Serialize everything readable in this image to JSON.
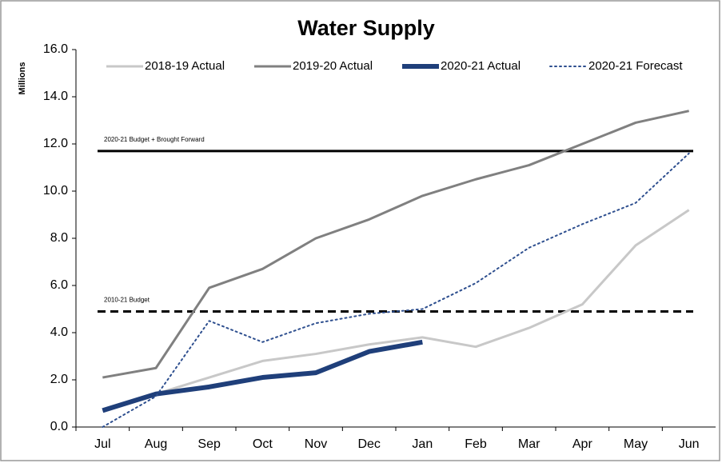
{
  "chart_data": {
    "type": "line",
    "title": "Water Supply",
    "y_label": "Millions",
    "categories": [
      "Jul",
      "Aug",
      "Sep",
      "Oct",
      "Nov",
      "Dec",
      "Jan",
      "Feb",
      "Mar",
      "Apr",
      "May",
      "Jun"
    ],
    "series": [
      {
        "name": "2018-19 Actual",
        "color": "#c8c8c8",
        "width": 3,
        "dashed": false,
        "values": [
          0.7,
          1.4,
          2.1,
          2.8,
          3.1,
          3.5,
          3.8,
          3.4,
          4.2,
          5.2,
          7.7,
          9.2
        ]
      },
      {
        "name": "2019-20 Actual",
        "color": "#808080",
        "width": 3,
        "dashed": false,
        "values": [
          2.1,
          2.5,
          5.9,
          6.7,
          8.0,
          8.8,
          9.8,
          10.5,
          11.1,
          12.0,
          12.9,
          13.4
        ]
      },
      {
        "name": "2020-21 Actual",
        "color": "#1f3f7a",
        "width": 6,
        "dashed": false,
        "values": [
          0.7,
          1.4,
          1.7,
          2.1,
          2.3,
          3.2,
          3.6,
          null,
          null,
          null,
          null,
          null
        ]
      },
      {
        "name": "2020-21 Forecast",
        "color": "#2e4f8f",
        "width": 2,
        "dashed": true,
        "values": [
          0.0,
          1.3,
          4.5,
          3.6,
          4.4,
          4.8,
          5.0,
          6.1,
          7.6,
          8.6,
          9.5,
          11.6
        ]
      }
    ],
    "reference_lines": [
      {
        "label": "2020-21 Budget + Brought Forward",
        "value": 11.7,
        "dashed": false
      },
      {
        "label": "2010-21 Budget",
        "value": 4.9,
        "dashed": true
      }
    ],
    "ylim": [
      0,
      16
    ],
    "yticks": [
      {
        "value": 0,
        "label": "0.0"
      },
      {
        "value": 2,
        "label": "2.0"
      },
      {
        "value": 4,
        "label": "4.0"
      },
      {
        "value": 6,
        "label": "6.0"
      },
      {
        "value": 8,
        "label": "8.0"
      },
      {
        "value": 10,
        "label": "10.0"
      },
      {
        "value": 12,
        "label": "12.0"
      },
      {
        "value": 14,
        "label": "14.0"
      },
      {
        "value": 16,
        "label": "16.0"
      }
    ],
    "grid": false,
    "legend": "top"
  }
}
